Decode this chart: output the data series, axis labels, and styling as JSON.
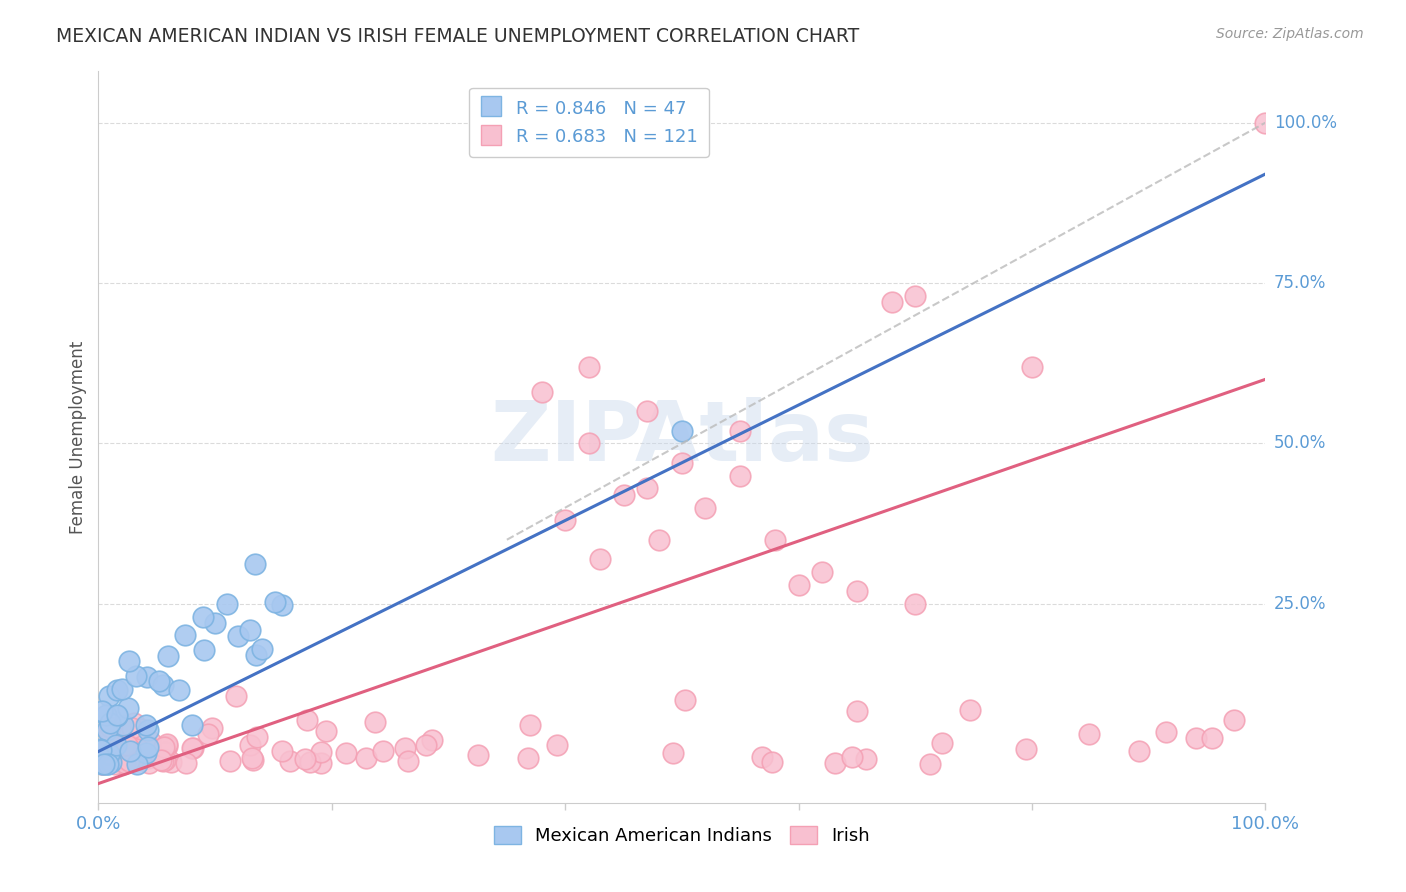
{
  "title": "MEXICAN AMERICAN INDIAN VS IRISH FEMALE UNEMPLOYMENT CORRELATION CHART",
  "source": "Source: ZipAtlas.com",
  "ylabel": "Female Unemployment",
  "legend_blue_r": "R = 0.846",
  "legend_blue_n": "N = 47",
  "legend_pink_r": "R = 0.683",
  "legend_pink_n": "N = 121",
  "legend_label_blue": "Mexican American Indians",
  "legend_label_pink": "Irish",
  "color_blue_fill": "#A8C8F0",
  "color_blue_edge": "#7EB4E2",
  "color_pink_fill": "#F8C0D0",
  "color_pink_edge": "#F4A0B4",
  "color_blue_line": "#4472C4",
  "color_pink_line": "#E06080",
  "color_dashed": "#BBBBBB",
  "color_title": "#333333",
  "color_axis_label": "#5B9BD5",
  "color_grid": "#CCCCCC",
  "background_color": "#FFFFFF",
  "watermark": "ZIPAtlas",
  "blue_line_x0": 0.0,
  "blue_line_y0": 0.02,
  "blue_line_x1": 1.0,
  "blue_line_y1": 0.92,
  "pink_line_x0": 0.0,
  "pink_line_y0": -0.03,
  "pink_line_x1": 1.0,
  "pink_line_y1": 0.6,
  "dash_line_x0": 0.0,
  "dash_line_y0": 0.0,
  "dash_line_x1": 1.0,
  "dash_line_y1": 1.0,
  "ylim_min": -0.06,
  "ylim_max": 1.08,
  "xlim_min": 0.0,
  "xlim_max": 1.0,
  "ytick_vals": [
    0.25,
    0.5,
    0.75,
    1.0
  ],
  "ytick_labels": [
    "25.0%",
    "50.0%",
    "75.0%",
    "100.0%"
  ]
}
